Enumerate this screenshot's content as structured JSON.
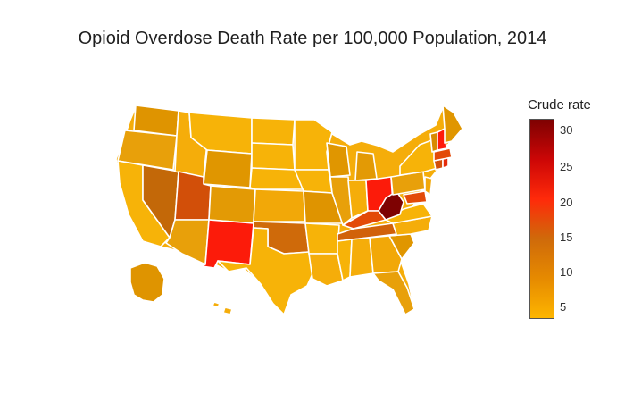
{
  "title": "Opioid Overdose Death Rate per 100,000 Population, 2014",
  "colorbar": {
    "title": "Crude rate",
    "ticks": [
      "30",
      "25",
      "20",
      "15",
      "10",
      "5"
    ]
  },
  "colors": {
    "low": "#fdb500",
    "mid_low": "#e68a00",
    "mid": "#cf6a0a",
    "mid_high": "#ff2a0a",
    "high": "#cc0606",
    "max": "#7e0202"
  }
}
